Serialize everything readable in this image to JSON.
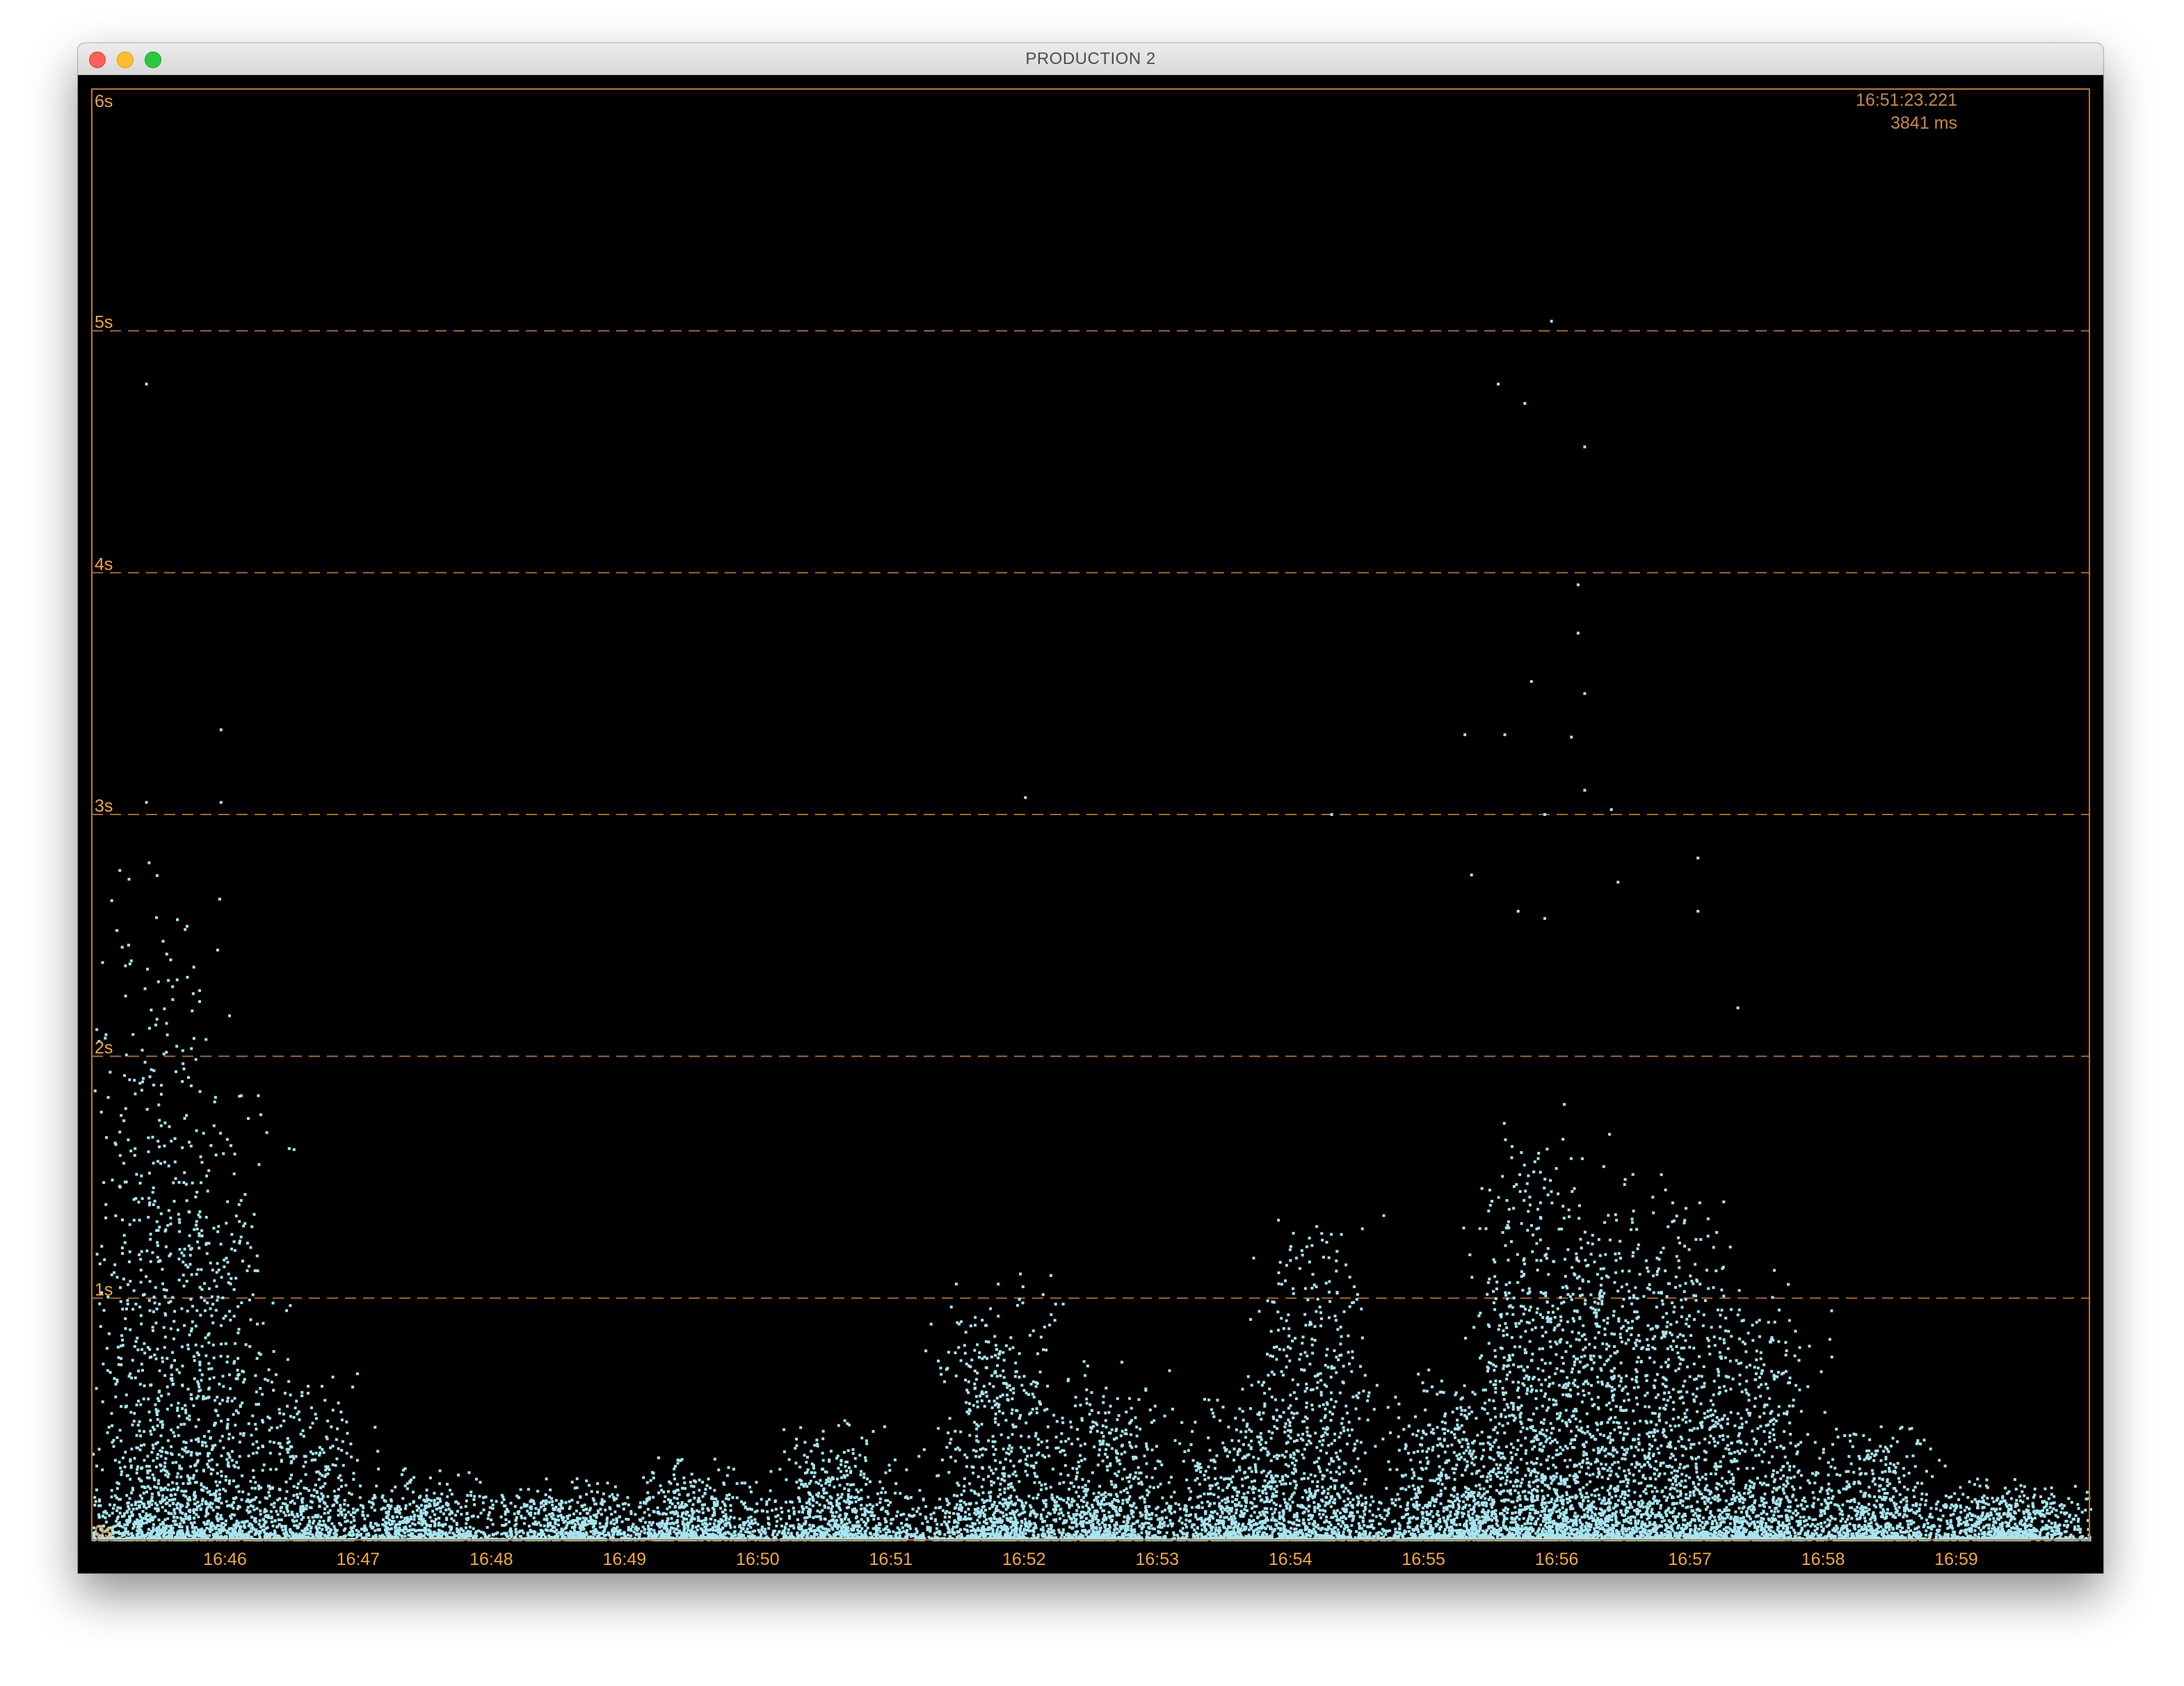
{
  "window": {
    "title": "PRODUCTION 2"
  },
  "colors": {
    "background": "#000000",
    "frame": "#b8783a",
    "gridline": "#a06a38",
    "tick_label": "#f0a848",
    "readout": "#c98a45",
    "points": "#a8e4f0"
  },
  "readout": {
    "time": "16:51:23.221",
    "value": "3841 ms"
  },
  "chart_data": {
    "type": "scatter",
    "title": "",
    "xlabel": "",
    "ylabel": "",
    "x_ticks": [
      "16:46",
      "16:47",
      "16:48",
      "16:49",
      "16:50",
      "16:51",
      "16:52",
      "16:53",
      "16:54",
      "16:55",
      "16:56",
      "16:57",
      "16:58",
      "16:59"
    ],
    "x_range": [
      "16:45",
      "16:60"
    ],
    "y_ticks": [
      "0s",
      "1s",
      "2s",
      "3s",
      "4s",
      "5s",
      "6s"
    ],
    "y_range": [
      0,
      6
    ],
    "y_unit": "s",
    "grid": "dashed horizontal at each second",
    "series": [
      {
        "name": "",
        "color": "#a8e4f0",
        "density_peaks_minutes": [
          {
            "x": 45.45,
            "peak_y": 2.2,
            "weight": 1.6
          },
          {
            "x": 45.95,
            "peak_y": 1.6,
            "weight": 1.3
          },
          {
            "x": 46.6,
            "peak_y": 0.6,
            "weight": 0.8
          },
          {
            "x": 47.5,
            "peak_y": 0.25,
            "weight": 0.6
          },
          {
            "x": 48.6,
            "peak_y": 0.2,
            "weight": 0.7
          },
          {
            "x": 49.5,
            "peak_y": 0.3,
            "weight": 0.8
          },
          {
            "x": 50.6,
            "peak_y": 0.4,
            "weight": 1.0
          },
          {
            "x": 51.8,
            "peak_y": 0.9,
            "weight": 1.4
          },
          {
            "x": 52.6,
            "peak_y": 0.6,
            "weight": 1.2
          },
          {
            "x": 53.6,
            "peak_y": 0.5,
            "weight": 1.1
          },
          {
            "x": 54.2,
            "peak_y": 1.1,
            "weight": 1.4
          },
          {
            "x": 55.2,
            "peak_y": 0.6,
            "weight": 1.3
          },
          {
            "x": 55.8,
            "peak_y": 1.4,
            "weight": 1.8
          },
          {
            "x": 56.3,
            "peak_y": 1.3,
            "weight": 1.7
          },
          {
            "x": 56.9,
            "peak_y": 1.2,
            "weight": 1.6
          },
          {
            "x": 57.5,
            "peak_y": 0.9,
            "weight": 1.3
          },
          {
            "x": 58.4,
            "peak_y": 0.4,
            "weight": 1.0
          },
          {
            "x": 59.4,
            "peak_y": 0.2,
            "weight": 0.8
          }
        ],
        "outliers": [
          {
            "x": 45.4,
            "y": 4.78
          },
          {
            "x": 45.96,
            "y": 3.35
          },
          {
            "x": 45.96,
            "y": 3.05
          },
          {
            "x": 45.4,
            "y": 3.05
          },
          {
            "x": 45.42,
            "y": 2.8
          },
          {
            "x": 45.95,
            "y": 2.65
          },
          {
            "x": 52.0,
            "y": 3.07
          },
          {
            "x": 54.3,
            "y": 3.0
          },
          {
            "x": 55.55,
            "y": 4.78
          },
          {
            "x": 55.75,
            "y": 4.7
          },
          {
            "x": 55.95,
            "y": 5.04
          },
          {
            "x": 56.2,
            "y": 4.52
          },
          {
            "x": 56.15,
            "y": 3.95
          },
          {
            "x": 56.15,
            "y": 3.75
          },
          {
            "x": 55.8,
            "y": 3.55
          },
          {
            "x": 56.2,
            "y": 3.5
          },
          {
            "x": 55.3,
            "y": 3.33
          },
          {
            "x": 55.6,
            "y": 3.33
          },
          {
            "x": 56.1,
            "y": 3.32
          },
          {
            "x": 56.2,
            "y": 3.1
          },
          {
            "x": 55.9,
            "y": 3.0
          },
          {
            "x": 56.4,
            "y": 3.02
          },
          {
            "x": 57.05,
            "y": 2.82
          },
          {
            "x": 56.45,
            "y": 2.72
          },
          {
            "x": 55.35,
            "y": 2.75
          },
          {
            "x": 55.7,
            "y": 2.6
          },
          {
            "x": 55.9,
            "y": 2.57
          },
          {
            "x": 57.05,
            "y": 2.6
          },
          {
            "x": 57.35,
            "y": 2.2
          }
        ]
      }
    ]
  }
}
